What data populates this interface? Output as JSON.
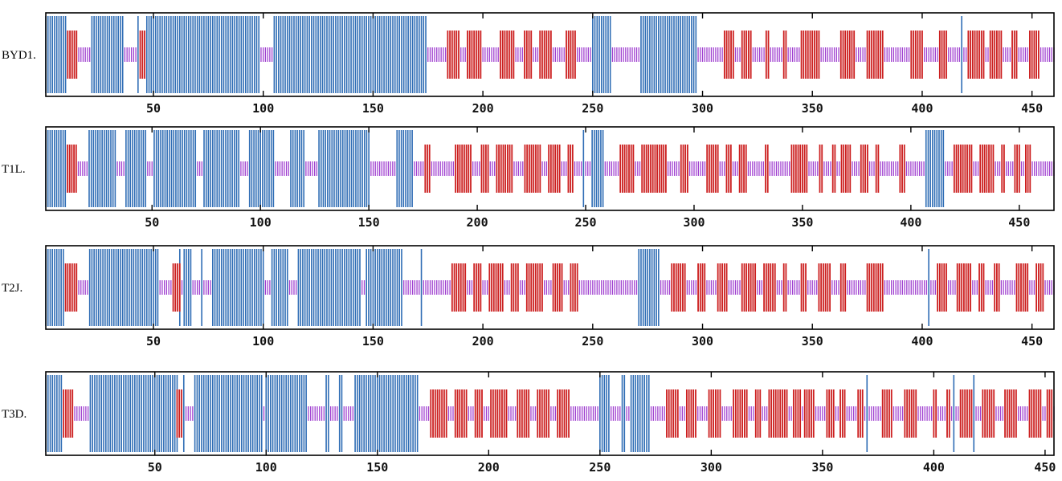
{
  "chart_data": {
    "type": "track",
    "colors": {
      "helix": "#2f6db5",
      "strand": "#cc1f1f",
      "coil": "#a040d0",
      "axis": "#000000"
    },
    "tracks": [
      {
        "label": "BYD1.",
        "length": 460,
        "xlim": [
          1,
          460
        ],
        "ticks": [
          50,
          100,
          150,
          200,
          250,
          300,
          350,
          400,
          450
        ],
        "helix": [
          [
            1,
            10
          ],
          [
            22,
            36
          ],
          [
            43,
            43
          ],
          [
            47,
            98
          ],
          [
            105,
            174
          ],
          [
            250,
            258
          ],
          [
            272,
            297
          ],
          [
            418,
            418
          ]
        ],
        "strand": [
          [
            11,
            15
          ],
          [
            44,
            46
          ],
          [
            184,
            189
          ],
          [
            193,
            199
          ],
          [
            208,
            214
          ],
          [
            219,
            222
          ],
          [
            226,
            231
          ],
          [
            238,
            242
          ],
          [
            310,
            314
          ],
          [
            318,
            322
          ],
          [
            329,
            330
          ],
          [
            337,
            338
          ],
          [
            345,
            353
          ],
          [
            363,
            369
          ],
          [
            375,
            382
          ],
          [
            395,
            400
          ],
          [
            408,
            411
          ],
          [
            421,
            428
          ],
          [
            431,
            436
          ],
          [
            441,
            443
          ],
          [
            449,
            453
          ]
        ]
      },
      {
        "label": "T1L.",
        "length": 466,
        "xlim": [
          1,
          466
        ],
        "ticks": [
          50,
          100,
          150,
          200,
          250,
          300,
          350,
          400,
          450
        ],
        "helix": [
          [
            1,
            10
          ],
          [
            21,
            33
          ],
          [
            38,
            47
          ],
          [
            51,
            70
          ],
          [
            74,
            90
          ],
          [
            95,
            106
          ],
          [
            114,
            120
          ],
          [
            127,
            150
          ],
          [
            163,
            170
          ],
          [
            249,
            249
          ],
          [
            253,
            258
          ],
          [
            407,
            415
          ]
        ],
        "strand": [
          [
            11,
            15
          ],
          [
            176,
            178
          ],
          [
            190,
            197
          ],
          [
            202,
            205
          ],
          [
            209,
            216
          ],
          [
            222,
            229
          ],
          [
            233,
            238
          ],
          [
            242,
            244
          ],
          [
            266,
            272
          ],
          [
            276,
            287
          ],
          [
            294,
            297
          ],
          [
            306,
            311
          ],
          [
            315,
            317
          ],
          [
            321,
            324
          ],
          [
            333,
            334
          ],
          [
            345,
            352
          ],
          [
            358,
            359
          ],
          [
            364,
            365
          ],
          [
            368,
            372
          ],
          [
            377,
            380
          ],
          [
            384,
            385
          ],
          [
            395,
            397
          ],
          [
            420,
            428
          ],
          [
            432,
            438
          ],
          [
            442,
            443
          ],
          [
            448,
            450
          ],
          [
            453,
            455
          ]
        ]
      },
      {
        "label": "T2J.",
        "length": 460,
        "xlim": [
          1,
          460
        ],
        "ticks": [
          50,
          100,
          150,
          200,
          250,
          300,
          350,
          400,
          450
        ],
        "helix": [
          [
            1,
            9
          ],
          [
            21,
            52
          ],
          [
            62,
            62
          ],
          [
            64,
            67
          ],
          [
            72,
            72
          ],
          [
            77,
            100
          ],
          [
            104,
            111
          ],
          [
            116,
            144
          ],
          [
            147,
            163
          ],
          [
            172,
            172
          ],
          [
            271,
            280
          ],
          [
            403,
            403
          ]
        ],
        "strand": [
          [
            10,
            15
          ],
          [
            59,
            60
          ],
          [
            60,
            62
          ],
          [
            186,
            192
          ],
          [
            196,
            199
          ],
          [
            203,
            209
          ],
          [
            213,
            216
          ],
          [
            220,
            227
          ],
          [
            232,
            236
          ],
          [
            240,
            243
          ],
          [
            286,
            292
          ],
          [
            298,
            301
          ],
          [
            307,
            311
          ],
          [
            318,
            324
          ],
          [
            328,
            333
          ],
          [
            337,
            338
          ],
          [
            345,
            347
          ],
          [
            353,
            358
          ],
          [
            363,
            365
          ],
          [
            375,
            382
          ],
          [
            407,
            411
          ],
          [
            416,
            422
          ],
          [
            426,
            428
          ],
          [
            433,
            435
          ],
          [
            443,
            448
          ],
          [
            452,
            455
          ]
        ]
      },
      {
        "label": "T3D.",
        "length": 454,
        "xlim": [
          1,
          454
        ],
        "ticks": [
          50,
          100,
          150,
          200,
          250,
          300,
          350,
          400,
          450
        ],
        "helix": [
          [
            1,
            8
          ],
          [
            21,
            60
          ],
          [
            63,
            63
          ],
          [
            68,
            98
          ],
          [
            100,
            118
          ],
          [
            127,
            128
          ],
          [
            133,
            134
          ],
          [
            140,
            168
          ],
          [
            250,
            254
          ],
          [
            260,
            261
          ],
          [
            264,
            272
          ],
          [
            370,
            370
          ],
          [
            409,
            409
          ],
          [
            418,
            418
          ]
        ],
        "strand": [
          [
            9,
            13
          ],
          [
            60,
            62
          ],
          [
            174,
            181
          ],
          [
            185,
            190
          ],
          [
            194,
            197
          ],
          [
            201,
            208
          ],
          [
            213,
            218
          ],
          [
            222,
            227
          ],
          [
            231,
            236
          ],
          [
            280,
            285
          ],
          [
            289,
            293
          ],
          [
            299,
            304
          ],
          [
            310,
            316
          ],
          [
            320,
            322
          ],
          [
            326,
            334
          ],
          [
            337,
            340
          ],
          [
            342,
            346
          ],
          [
            352,
            355
          ],
          [
            358,
            360
          ],
          [
            366,
            368
          ],
          [
            377,
            381
          ],
          [
            387,
            392
          ],
          [
            400,
            401
          ],
          [
            406,
            407
          ],
          [
            412,
            417
          ],
          [
            422,
            427
          ],
          [
            432,
            437
          ],
          [
            443,
            448
          ],
          [
            451,
            453
          ]
        ]
      }
    ]
  }
}
